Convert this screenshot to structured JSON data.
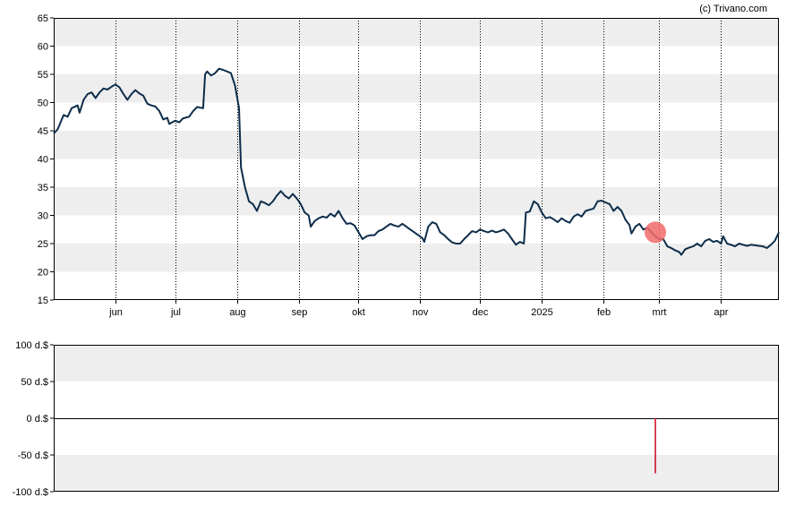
{
  "credit": "(c) Trivano.com",
  "chart_data": [
    {
      "type": "line",
      "title": "",
      "xlabel": "",
      "ylabel": "",
      "ylim": [
        15,
        65
      ],
      "yticks": [
        "15",
        "20",
        "25",
        "30",
        "35",
        "40",
        "45",
        "50",
        "55",
        "60",
        "65"
      ],
      "xticks": [
        "jun",
        "jul",
        "aug",
        "sep",
        "okt",
        "nov",
        "dec",
        "2025",
        "feb",
        "mrt",
        "apr"
      ],
      "x_range": [
        "2024-05-01",
        "2025-04-30"
      ],
      "grid": "alternating horizontal bands, dotted vertical gridlines",
      "line_color": "#0d2d4a",
      "marker": {
        "date": "2025-02-27",
        "value": 27,
        "color": "#f06a6a"
      },
      "series": [
        {
          "points": [
            [
              "2024-05-01",
              44.5
            ],
            [
              "2024-05-03",
              45.3
            ],
            [
              "2024-05-06",
              47.8
            ],
            [
              "2024-05-08",
              47.5
            ],
            [
              "2024-05-10",
              49.0
            ],
            [
              "2024-05-13",
              49.5
            ],
            [
              "2024-05-14",
              48.2
            ],
            [
              "2024-05-16",
              50.5
            ],
            [
              "2024-05-18",
              51.5
            ],
            [
              "2024-05-20",
              51.8
            ],
            [
              "2024-05-22",
              50.8
            ],
            [
              "2024-05-24",
              51.8
            ],
            [
              "2024-05-26",
              52.5
            ],
            [
              "2024-05-28",
              52.3
            ],
            [
              "2024-05-30",
              52.8
            ],
            [
              "2024-06-01",
              53.2
            ],
            [
              "2024-06-03",
              52.7
            ],
            [
              "2024-06-05",
              51.5
            ],
            [
              "2024-06-07",
              50.5
            ],
            [
              "2024-06-09",
              51.5
            ],
            [
              "2024-06-11",
              52.2
            ],
            [
              "2024-06-13",
              51.6
            ],
            [
              "2024-06-15",
              51.2
            ],
            [
              "2024-06-17",
              49.8
            ],
            [
              "2024-06-19",
              49.5
            ],
            [
              "2024-06-21",
              49.3
            ],
            [
              "2024-06-23",
              48.5
            ],
            [
              "2024-06-25",
              47.0
            ],
            [
              "2024-06-27",
              47.3
            ],
            [
              "2024-06-28",
              46.2
            ],
            [
              "2024-07-01",
              46.8
            ],
            [
              "2024-07-03",
              46.5
            ],
            [
              "2024-07-05",
              47.2
            ],
            [
              "2024-07-08",
              47.5
            ],
            [
              "2024-07-10",
              48.5
            ],
            [
              "2024-07-12",
              49.2
            ],
            [
              "2024-07-15",
              49.0
            ],
            [
              "2024-07-16",
              55.0
            ],
            [
              "2024-07-17",
              55.5
            ],
            [
              "2024-07-19",
              54.8
            ],
            [
              "2024-07-21",
              55.2
            ],
            [
              "2024-07-23",
              56.0
            ],
            [
              "2024-07-25",
              55.8
            ],
            [
              "2024-07-27",
              55.5
            ],
            [
              "2024-07-29",
              55.2
            ],
            [
              "2024-07-31",
              53.0
            ],
            [
              "2024-08-02",
              49.0
            ],
            [
              "2024-08-03",
              38.5
            ],
            [
              "2024-08-05",
              35.0
            ],
            [
              "2024-08-07",
              32.5
            ],
            [
              "2024-08-09",
              32.0
            ],
            [
              "2024-08-11",
              30.8
            ],
            [
              "2024-08-13",
              32.5
            ],
            [
              "2024-08-15",
              32.2
            ],
            [
              "2024-08-17",
              31.8
            ],
            [
              "2024-08-19",
              32.5
            ],
            [
              "2024-08-21",
              33.5
            ],
            [
              "2024-08-23",
              34.3
            ],
            [
              "2024-08-25",
              33.5
            ],
            [
              "2024-08-27",
              33.0
            ],
            [
              "2024-08-29",
              33.8
            ],
            [
              "2024-08-31",
              33.0
            ],
            [
              "2024-09-02",
              32.0
            ],
            [
              "2024-09-04",
              30.5
            ],
            [
              "2024-09-06",
              30.0
            ],
            [
              "2024-09-07",
              28.0
            ],
            [
              "2024-09-09",
              29.0
            ],
            [
              "2024-09-11",
              29.5
            ],
            [
              "2024-09-13",
              29.8
            ],
            [
              "2024-09-15",
              29.6
            ],
            [
              "2024-09-17",
              30.3
            ],
            [
              "2024-09-19",
              29.8
            ],
            [
              "2024-09-21",
              30.8
            ],
            [
              "2024-09-23",
              29.5
            ],
            [
              "2024-09-25",
              28.5
            ],
            [
              "2024-09-27",
              28.6
            ],
            [
              "2024-09-29",
              28.2
            ],
            [
              "2024-10-01",
              27.0
            ],
            [
              "2024-10-03",
              25.8
            ],
            [
              "2024-10-05",
              26.3
            ],
            [
              "2024-10-07",
              26.5
            ],
            [
              "2024-10-09",
              26.5
            ],
            [
              "2024-10-11",
              27.2
            ],
            [
              "2024-10-13",
              27.5
            ],
            [
              "2024-10-15",
              28.0
            ],
            [
              "2024-10-17",
              28.5
            ],
            [
              "2024-10-19",
              28.2
            ],
            [
              "2024-10-21",
              28.0
            ],
            [
              "2024-10-23",
              28.5
            ],
            [
              "2024-10-25",
              28.0
            ],
            [
              "2024-10-27",
              27.5
            ],
            [
              "2024-10-29",
              27.0
            ],
            [
              "2024-10-31",
              26.5
            ],
            [
              "2024-11-02",
              26.0
            ],
            [
              "2024-11-03",
              25.3
            ],
            [
              "2024-11-05",
              28.0
            ],
            [
              "2024-11-07",
              28.8
            ],
            [
              "2024-11-09",
              28.5
            ],
            [
              "2024-11-11",
              27.0
            ],
            [
              "2024-11-13",
              26.5
            ],
            [
              "2024-11-15",
              25.8
            ],
            [
              "2024-11-17",
              25.2
            ],
            [
              "2024-11-19",
              25.0
            ],
            [
              "2024-11-21",
              25.0
            ],
            [
              "2024-11-23",
              25.8
            ],
            [
              "2024-11-25",
              26.5
            ],
            [
              "2024-11-27",
              27.2
            ],
            [
              "2024-11-29",
              27.0
            ],
            [
              "2024-12-01",
              27.5
            ],
            [
              "2024-12-03",
              27.2
            ],
            [
              "2024-12-05",
              27.0
            ],
            [
              "2024-12-07",
              27.3
            ],
            [
              "2024-12-09",
              27.0
            ],
            [
              "2024-12-11",
              27.2
            ],
            [
              "2024-12-13",
              27.5
            ],
            [
              "2024-12-15",
              26.8
            ],
            [
              "2024-12-17",
              25.8
            ],
            [
              "2024-12-19",
              24.8
            ],
            [
              "2024-12-21",
              25.3
            ],
            [
              "2024-12-23",
              25.0
            ],
            [
              "2024-12-24",
              30.5
            ],
            [
              "2024-12-26",
              30.7
            ],
            [
              "2024-12-28",
              32.5
            ],
            [
              "2024-12-30",
              32.0
            ],
            [
              "2025-01-01",
              30.5
            ],
            [
              "2025-01-03",
              29.5
            ],
            [
              "2025-01-05",
              29.7
            ],
            [
              "2025-01-07",
              29.3
            ],
            [
              "2025-01-09",
              28.8
            ],
            [
              "2025-01-11",
              29.5
            ],
            [
              "2025-01-13",
              29.0
            ],
            [
              "2025-01-15",
              28.7
            ],
            [
              "2025-01-17",
              29.8
            ],
            [
              "2025-01-19",
              30.2
            ],
            [
              "2025-01-21",
              29.8
            ],
            [
              "2025-01-23",
              30.8
            ],
            [
              "2025-01-25",
              31.0
            ],
            [
              "2025-01-27",
              31.2
            ],
            [
              "2025-01-29",
              32.5
            ],
            [
              "2025-01-31",
              32.6
            ],
            [
              "2025-02-02",
              32.3
            ],
            [
              "2025-02-04",
              32.0
            ],
            [
              "2025-02-06",
              30.8
            ],
            [
              "2025-02-08",
              31.5
            ],
            [
              "2025-02-10",
              30.8
            ],
            [
              "2025-02-12",
              29.2
            ],
            [
              "2025-02-14",
              28.3
            ],
            [
              "2025-02-15",
              26.8
            ],
            [
              "2025-02-17",
              28.0
            ],
            [
              "2025-02-19",
              28.5
            ],
            [
              "2025-02-21",
              27.5
            ],
            [
              "2025-02-23",
              27.8
            ],
            [
              "2025-02-25",
              27.0
            ],
            [
              "2025-02-27",
              26.3
            ],
            [
              "2025-03-01",
              25.8
            ],
            [
              "2025-03-03",
              25.8
            ],
            [
              "2025-03-05",
              24.5
            ],
            [
              "2025-03-07",
              24.2
            ],
            [
              "2025-03-09",
              23.8
            ],
            [
              "2025-03-11",
              23.5
            ],
            [
              "2025-03-12",
              23.0
            ],
            [
              "2025-03-14",
              24.0
            ],
            [
              "2025-03-16",
              24.3
            ],
            [
              "2025-03-18",
              24.5
            ],
            [
              "2025-03-20",
              25.0
            ],
            [
              "2025-03-22",
              24.5
            ],
            [
              "2025-03-24",
              25.5
            ],
            [
              "2025-03-26",
              25.8
            ],
            [
              "2025-03-28",
              25.3
            ],
            [
              "2025-03-30",
              25.5
            ],
            [
              "2025-04-01",
              25.0
            ],
            [
              "2025-04-02",
              26.3
            ],
            [
              "2025-04-04",
              25.0
            ],
            [
              "2025-04-06",
              24.8
            ],
            [
              "2025-04-08",
              24.5
            ],
            [
              "2025-04-10",
              25.0
            ],
            [
              "2025-04-12",
              24.8
            ],
            [
              "2025-04-14",
              24.6
            ],
            [
              "2025-04-16",
              24.8
            ],
            [
              "2025-04-18",
              24.7
            ],
            [
              "2025-04-20",
              24.6
            ],
            [
              "2025-04-22",
              24.5
            ],
            [
              "2025-04-24",
              24.2
            ],
            [
              "2025-04-26",
              24.8
            ],
            [
              "2025-04-28",
              25.5
            ],
            [
              "2025-04-30",
              27.0
            ]
          ]
        }
      ]
    },
    {
      "type": "bar",
      "title": "",
      "xlabel": "",
      "ylabel": "",
      "ylim": [
        -100,
        100
      ],
      "yticks": [
        "100 d.$",
        "50 d.$",
        "0 d.$",
        "-50 d.$",
        "-100 d.$"
      ],
      "x_range": [
        "2024-05-01",
        "2025-04-30"
      ],
      "grid": "alternating horizontal bands",
      "series": [
        {
          "points": [
            [
              "2025-02-27",
              -75
            ]
          ],
          "color": "#d0021b"
        }
      ]
    }
  ]
}
